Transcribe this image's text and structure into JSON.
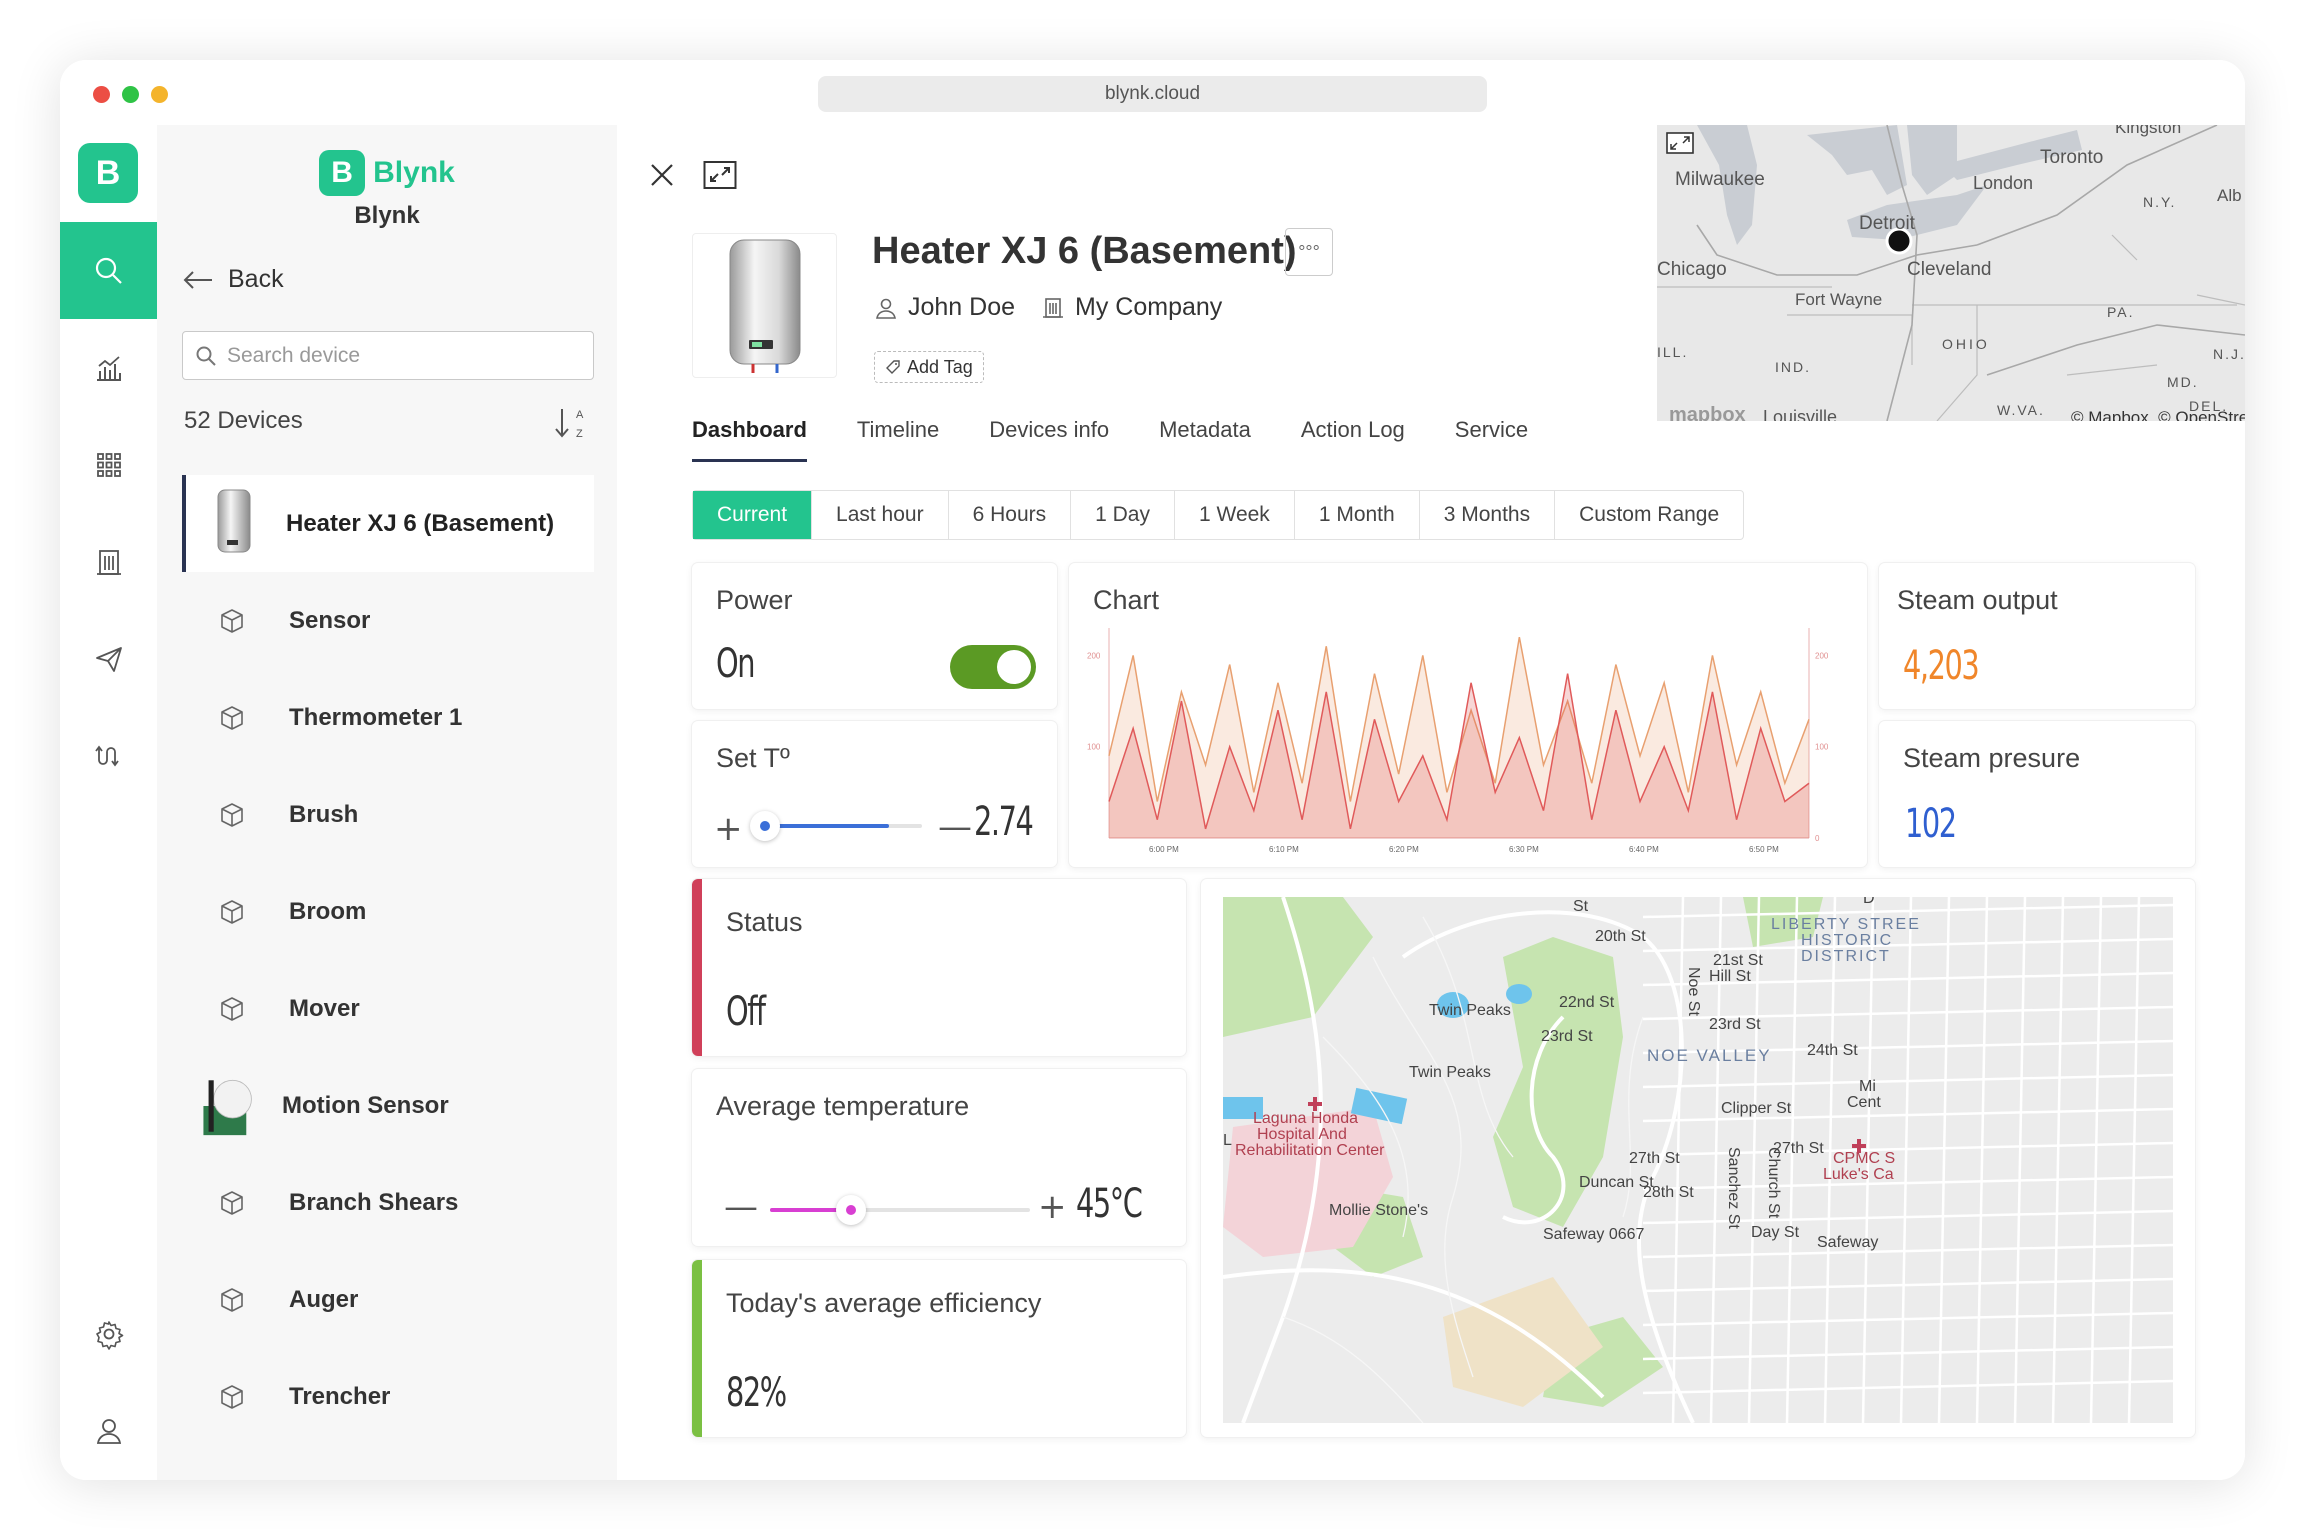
{
  "browser": {
    "url": "blynk.cloud"
  },
  "brand": {
    "logo_letter": "B",
    "name": "Blynk",
    "subtitle": "Blynk"
  },
  "sidebar": {
    "back_label": "Back",
    "search_placeholder": "Search device",
    "device_count": "52 Devices",
    "sort_icon": "sort-az-icon",
    "devices": [
      {
        "label": "Heater XJ 6 (Basement)",
        "selected": true,
        "thumb": "heater"
      },
      {
        "label": "Sensor",
        "thumb": "cube"
      },
      {
        "label": "Thermometer 1",
        "thumb": "cube"
      },
      {
        "label": "Brush",
        "thumb": "cube"
      },
      {
        "label": "Broom",
        "thumb": "cube"
      },
      {
        "label": "Mover",
        "thumb": "cube"
      },
      {
        "label": "Motion Sensor",
        "thumb": "motion"
      },
      {
        "label": "Branch Shears",
        "thumb": "cube"
      },
      {
        "label": "Auger",
        "thumb": "cube"
      },
      {
        "label": "Trencher",
        "thumb": "cube"
      }
    ]
  },
  "device": {
    "title": "Heater XJ 6 (Basement)",
    "owner": "John Doe",
    "company": "My Company",
    "add_tag": "Add Tag",
    "more_label": "°°°"
  },
  "tabs": [
    "Dashboard",
    "Timeline",
    "Devices info",
    "Metadata",
    "Action Log",
    "Service"
  ],
  "ranges": [
    "Current",
    "Last hour",
    "6 Hours",
    "1 Day",
    "1 Week",
    "1 Month",
    "3 Months",
    "Custom Range"
  ],
  "widgets": {
    "power": {
      "title": "Power",
      "value": "On",
      "on": true
    },
    "set_t": {
      "title": "Set Tº",
      "value": "2.74",
      "level": 0.78
    },
    "chart": {
      "title": "Chart"
    },
    "steam_output": {
      "title": "Steam output",
      "value": "4,203",
      "color": "#f0862a"
    },
    "steam_pressure": {
      "title": "Steam presure",
      "value": "102",
      "color": "#2f5fd0"
    },
    "status": {
      "title": "Status",
      "value": "Off",
      "color": "#d0405a"
    },
    "avg_temp": {
      "title": "Average temperature",
      "value": "45°C",
      "level": 0.3
    },
    "efficiency": {
      "title": "Today's average efficiency",
      "value": "82%",
      "color": "#7bc043"
    }
  },
  "chart_data": {
    "type": "area",
    "x_ticks": [
      "6:00 PM",
      "6:10 PM",
      "6:20 PM",
      "6:30 PM",
      "6:40 PM",
      "6:50 PM"
    ],
    "y_left_ticks": [
      "200",
      "100"
    ],
    "y_right_ticks": [
      "200",
      "100",
      "0"
    ],
    "series": [
      {
        "color": "#e8a070",
        "values": [
          90,
          200,
          40,
          160,
          80,
          190,
          50,
          170,
          60,
          210,
          40,
          180,
          70,
          200,
          50,
          140,
          60,
          220,
          80,
          150,
          60,
          190,
          90,
          170,
          50,
          200,
          80,
          160,
          60,
          130
        ]
      },
      {
        "color": "#e05a5a",
        "values": [
          40,
          120,
          20,
          150,
          10,
          100,
          30,
          140,
          20,
          160,
          10,
          130,
          40,
          90,
          20,
          170,
          50,
          110,
          30,
          180,
          20,
          140,
          40,
          100,
          30,
          160,
          20,
          120,
          40,
          60
        ]
      }
    ]
  },
  "map_top": {
    "labels": [
      "Kingston",
      "Toronto",
      "Milwaukee",
      "London",
      "Detroit",
      "N.Y.",
      "Alb",
      "Chicago",
      "Fort Wayne",
      "Cleveland",
      "PA.",
      "OHIO",
      "ILL.",
      "IND.",
      "N.J.",
      "MD.",
      "DEL.",
      "W.VA.",
      "Louisville",
      "mapbox",
      "© Mapbox, © OpenStreetM"
    ]
  },
  "map_city": {
    "labels": [
      "20th St",
      "21st St",
      "Hill St",
      "22nd St",
      "23rd St",
      "23rd St",
      "24th St",
      "Twin Peaks",
      "Twin Peaks",
      "NOE VALLEY",
      "LIBERTY STREE",
      "HISTORIC",
      "DISTRICT",
      "Laguna Honda",
      "Hospital And",
      "Rehabilitation Center",
      "Clipper St",
      "27th St",
      "27th St",
      "28th St",
      "Duncan St",
      "Mollie Stone's",
      "Safeway 0667",
      "Safeway",
      "Day St",
      "Noe St",
      "Sanchez St",
      "Church St",
      "CPMC S",
      "Luke's Ca",
      "Mi",
      "Cent",
      "St",
      "L",
      "D"
    ]
  }
}
